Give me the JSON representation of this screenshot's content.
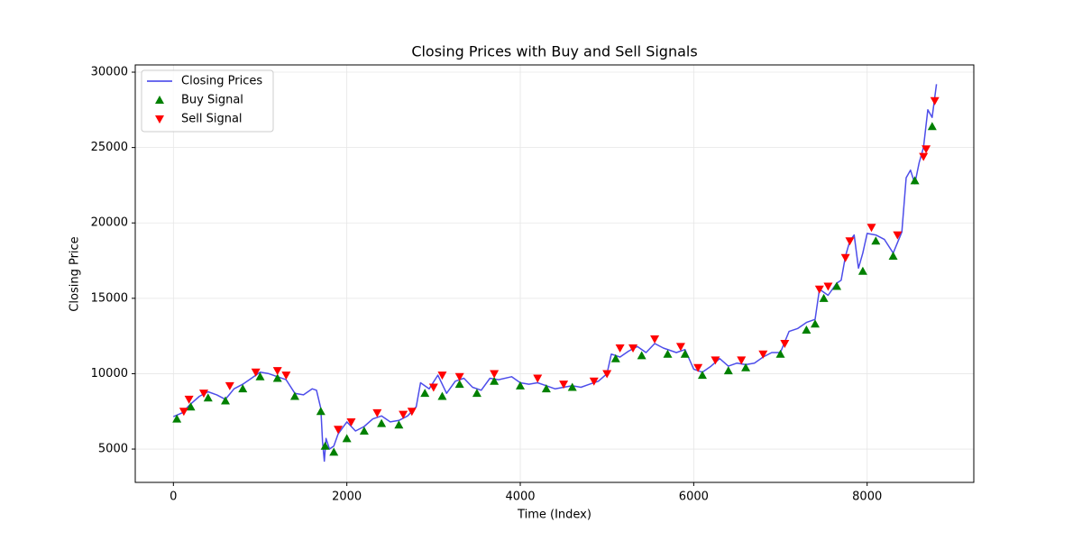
{
  "chart_data": {
    "type": "line",
    "title": "Closing Prices with Buy and Sell Signals",
    "x_label": "Time (Index)",
    "y_label": "Closing Price",
    "xlim": [
      -440,
      9230
    ],
    "ylim": [
      2790,
      30480
    ],
    "xticks": [
      0,
      2000,
      4000,
      6000,
      8000
    ],
    "yticks": [
      5000,
      10000,
      15000,
      20000,
      25000,
      30000
    ],
    "grid": true,
    "legend": "upper left",
    "series": [
      {
        "name": "Closing Prices",
        "kind": "line",
        "color": "#3a3ae8",
        "x": [
          0,
          100,
          200,
          300,
          400,
          500,
          600,
          700,
          800,
          900,
          1000,
          1100,
          1200,
          1300,
          1400,
          1500,
          1600,
          1650,
          1700,
          1720,
          1740,
          1760,
          1800,
          1850,
          1900,
          2000,
          2100,
          2200,
          2300,
          2400,
          2500,
          2600,
          2700,
          2800,
          2850,
          2950,
          3050,
          3150,
          3250,
          3350,
          3450,
          3550,
          3650,
          3750,
          3900,
          4000,
          4100,
          4200,
          4300,
          4400,
          4500,
          4600,
          4700,
          4800,
          4900,
          5000,
          5050,
          5150,
          5250,
          5350,
          5450,
          5550,
          5650,
          5800,
          5900,
          6000,
          6100,
          6200,
          6300,
          6400,
          6500,
          6600,
          6700,
          6800,
          6900,
          7000,
          7100,
          7200,
          7300,
          7400,
          7450,
          7550,
          7650,
          7700,
          7750,
          7800,
          7850,
          7900,
          7950,
          8000,
          8100,
          8200,
          8300,
          8400,
          8450,
          8500,
          8550,
          8600,
          8650,
          8700,
          8750,
          8800
        ],
        "values": [
          7150,
          7400,
          8000,
          8500,
          8800,
          8600,
          8300,
          9000,
          9300,
          9700,
          10100,
          10000,
          9800,
          9600,
          8700,
          8600,
          9000,
          8900,
          7700,
          5500,
          4200,
          5700,
          5000,
          5200,
          6000,
          6800,
          6200,
          6500,
          7000,
          7200,
          6800,
          6900,
          7200,
          7800,
          9400,
          9000,
          9900,
          8700,
          9500,
          9700,
          9100,
          8900,
          9700,
          9600,
          9800,
          9400,
          9300,
          9400,
          9200,
          9000,
          9100,
          9200,
          9100,
          9300,
          9500,
          10000,
          11300,
          11100,
          11500,
          11800,
          11400,
          12000,
          11700,
          11400,
          11600,
          10300,
          10100,
          10500,
          11000,
          10500,
          10700,
          10600,
          10700,
          11100,
          11400,
          11400,
          12800,
          13000,
          13400,
          13600,
          15600,
          15200,
          16000,
          16200,
          17800,
          18800,
          19200,
          17000,
          18000,
          19300,
          19200,
          18900,
          18000,
          19400,
          23000,
          23500,
          22600,
          24000,
          25000,
          27500,
          27000,
          29200
        ]
      },
      {
        "name": "Buy Signal",
        "kind": "marker-up",
        "color": "#008000",
        "x": [
          40,
          200,
          400,
          600,
          800,
          1000,
          1200,
          1400,
          1700,
          1750,
          1850,
          2000,
          2200,
          2400,
          2600,
          2900,
          3100,
          3300,
          3500,
          3700,
          4000,
          4300,
          4600,
          5100,
          5400,
          5700,
          5900,
          6100,
          6400,
          6600,
          7000,
          7300,
          7400,
          7500,
          7650,
          7950,
          8100,
          8300,
          8550,
          8750
        ],
        "values": [
          7000,
          7800,
          8400,
          8200,
          9000,
          9800,
          9700,
          8500,
          7500,
          5200,
          4800,
          5700,
          6200,
          6700,
          6600,
          8700,
          8500,
          9300,
          8700,
          9500,
          9200,
          9000,
          9100,
          11000,
          11200,
          11300,
          11300,
          9900,
          10200,
          10400,
          11300,
          12900,
          13300,
          15000,
          15800,
          16800,
          18800,
          17800,
          22800,
          26400
        ]
      },
      {
        "name": "Sell Signal",
        "kind": "marker-down",
        "color": "#ff0000",
        "x": [
          120,
          180,
          350,
          650,
          950,
          1200,
          1300,
          1900,
          2050,
          2350,
          2650,
          2750,
          3000,
          3100,
          3300,
          3700,
          4200,
          4500,
          4850,
          5000,
          5150,
          5300,
          5550,
          5850,
          6050,
          6250,
          6550,
          6800,
          7050,
          7450,
          7550,
          7750,
          7800,
          8050,
          8350,
          8650,
          8680,
          8780
        ],
        "values": [
          7500,
          8300,
          8700,
          9200,
          10100,
          10200,
          9900,
          6300,
          6800,
          7400,
          7300,
          7500,
          9100,
          9900,
          9800,
          10000,
          9700,
          9300,
          9500,
          10000,
          11700,
          11700,
          12300,
          11800,
          10400,
          10900,
          10900,
          11300,
          12000,
          15600,
          15800,
          17700,
          18800,
          19700,
          19200,
          24400,
          24900,
          28100
        ]
      }
    ]
  }
}
